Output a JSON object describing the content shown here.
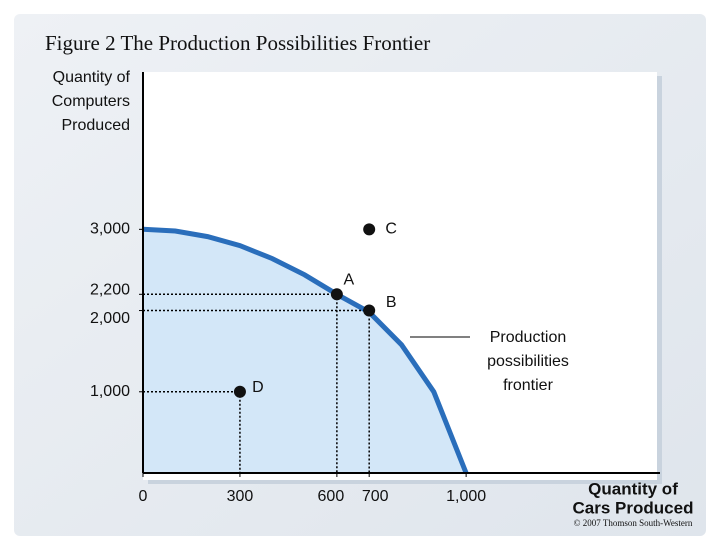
{
  "chart_data": {
    "type": "line",
    "title": "Figure 2 The Production Possibilities Frontier",
    "ylabel": [
      "Quantity of",
      "Computers",
      "Produced"
    ],
    "xlabel": [
      "Quantity of",
      "Cars Produced"
    ],
    "credit": "© 2007 Thomson South-Western",
    "xlim": [
      0,
      1600
    ],
    "ylim": [
      0,
      4900
    ],
    "xticks": [
      0,
      300,
      600,
      700,
      {
        "value": 1000,
        "label": "1,000"
      }
    ],
    "yticks": [
      {
        "value": 1000,
        "label": "1,000"
      },
      {
        "value": 2000,
        "label": "2,000"
      },
      {
        "value": 2200,
        "label": "2,200"
      },
      {
        "value": 3000,
        "label": "3,000"
      }
    ],
    "x": [
      0,
      100,
      200,
      300,
      400,
      500,
      600,
      700,
      800,
      900,
      1000
    ],
    "values": [
      3000,
      2980,
      2910,
      2800,
      2640,
      2440,
      2200,
      1980,
      1580,
      1000,
      0
    ],
    "color": "#2a6ebb",
    "fill_color": "#d3e7f8",
    "annotation": [
      "Production",
      "possibilities",
      "frontier"
    ],
    "points": [
      {
        "label": "A",
        "x": 600,
        "y": 2200,
        "guides": true
      },
      {
        "label": "B",
        "x": 700,
        "y": 2000,
        "guides": true
      },
      {
        "label": "C",
        "x": 700,
        "y": 3000,
        "guides": false
      },
      {
        "label": "D",
        "x": 300,
        "y": 1000,
        "guides": true
      }
    ]
  }
}
